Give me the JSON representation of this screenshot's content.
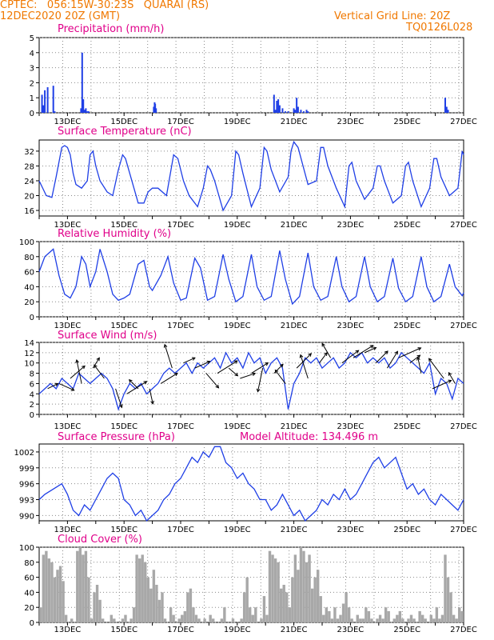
{
  "header": {
    "line1_left": "CPTEC:   056:15W-30:23S   QUARAI (RS)",
    "line2_left": "12DEC2020 20Z (GMT)",
    "line1_right": "Vertical Grid Line: 20Z",
    "line2_right": "TQ0126L028"
  },
  "colors": {
    "header": "#f07800",
    "title": "#e0008a",
    "line": "#1f3fe6",
    "bar": "#1f3fe6",
    "cloud": "#a8a8a8",
    "grid": "#8a8a8a"
  },
  "x_axis": {
    "start_label": "12DEC2020 20Z",
    "tick_labels": [
      "13DEC",
      "15DEC",
      "17DEC",
      "19DEC",
      "21DEC",
      "23DEC",
      "25DEC",
      "27DEC"
    ],
    "tick_days": [
      13,
      15,
      17,
      19,
      21,
      23,
      25,
      27
    ],
    "range_days": [
      12.0,
      27.0
    ]
  },
  "chart_data": [
    {
      "id": "precip",
      "type": "bar",
      "title": "Precipitation (mm/h)",
      "ylim": [
        0,
        5
      ],
      "yticks": [
        0,
        1,
        2,
        3,
        4,
        5
      ],
      "grid": true,
      "x": [
        12.1,
        12.15,
        12.2,
        12.3,
        12.5,
        12.55,
        13.48,
        13.52,
        13.56,
        13.6,
        13.65,
        13.7,
        13.75,
        16.05,
        16.08,
        16.1,
        16.13,
        20.3,
        20.35,
        20.4,
        20.45,
        20.5,
        20.6,
        20.7,
        20.8,
        21.0,
        21.05,
        21.1,
        21.15,
        21.25,
        21.35,
        21.45,
        21.5,
        26.35,
        26.4,
        26.45
      ],
      "values": [
        1.2,
        0.5,
        1.5,
        1.7,
        1.8,
        0.1,
        0.3,
        4.0,
        0.9,
        0.2,
        0.3,
        0.1,
        0.1,
        0.4,
        0.7,
        0.6,
        0.3,
        1.2,
        0.2,
        0.8,
        0.9,
        0.5,
        0.3,
        0.1,
        0.1,
        0.3,
        0.2,
        1.0,
        0.4,
        0.2,
        0.1,
        0.2,
        0.1,
        1.0,
        0.4,
        0.2
      ]
    },
    {
      "id": "temperature",
      "type": "line",
      "title": "Surface Temperature (nC)",
      "ylim": [
        14.5,
        35
      ],
      "yticks": [
        16,
        20,
        24,
        28,
        32
      ],
      "grid": true,
      "x": [
        12.0,
        12.25,
        12.45,
        12.6,
        12.8,
        12.9,
        13.0,
        13.1,
        13.2,
        13.3,
        13.5,
        13.7,
        13.8,
        13.9,
        14.0,
        14.15,
        14.4,
        14.6,
        14.8,
        14.95,
        15.05,
        15.2,
        15.5,
        15.7,
        15.85,
        16.0,
        16.05,
        16.1,
        16.2,
        16.5,
        16.75,
        16.9,
        17.0,
        17.1,
        17.3,
        17.6,
        17.8,
        17.95,
        18.05,
        18.2,
        18.5,
        18.8,
        18.95,
        19.05,
        19.2,
        19.5,
        19.8,
        19.95,
        20.05,
        20.2,
        20.5,
        20.8,
        20.9,
        21.0,
        21.15,
        21.5,
        21.8,
        21.95,
        22.05,
        22.2,
        22.5,
        22.8,
        22.95,
        23.05,
        23.2,
        23.5,
        23.8,
        23.95,
        24.05,
        24.2,
        24.5,
        24.8,
        24.95,
        25.05,
        25.2,
        25.5,
        25.8,
        25.95,
        26.05,
        26.2,
        26.5,
        26.8,
        26.95,
        27.0
      ],
      "values": [
        24,
        20,
        19.5,
        25,
        33,
        33.5,
        33,
        31,
        26,
        23,
        22,
        24,
        31,
        32,
        28,
        24,
        21,
        20,
        27,
        31,
        30,
        26,
        18,
        18,
        21,
        22,
        22,
        22,
        22,
        20,
        31,
        30,
        27,
        24,
        20,
        17,
        22,
        28,
        27,
        24,
        16,
        20,
        32,
        31,
        26,
        17,
        22,
        33,
        32,
        27,
        21,
        25,
        32,
        34.5,
        33,
        23,
        24,
        33,
        33,
        28,
        22,
        17,
        28,
        29,
        24,
        19,
        22,
        28,
        28,
        24,
        18,
        20,
        28,
        29,
        24,
        17,
        22,
        30,
        30,
        25,
        20,
        22,
        32,
        31
      ]
    },
    {
      "id": "humidity",
      "type": "line",
      "title": "Relative Humidity (%)",
      "ylim": [
        0,
        100
      ],
      "yticks": [
        0,
        20,
        40,
        60,
        80,
        100
      ],
      "grid": true,
      "x": [
        12.0,
        12.2,
        12.5,
        12.7,
        12.9,
        13.1,
        13.3,
        13.5,
        13.65,
        13.8,
        14.0,
        14.15,
        14.4,
        14.6,
        14.8,
        15.0,
        15.2,
        15.5,
        15.7,
        15.9,
        16.0,
        16.3,
        16.55,
        16.75,
        17.0,
        17.2,
        17.5,
        17.7,
        17.95,
        18.2,
        18.5,
        18.7,
        18.95,
        19.2,
        19.5,
        19.7,
        19.95,
        20.2,
        20.5,
        20.7,
        20.95,
        21.2,
        21.5,
        21.7,
        21.95,
        22.2,
        22.5,
        22.7,
        22.95,
        23.2,
        23.5,
        23.7,
        23.95,
        24.2,
        24.5,
        24.7,
        24.95,
        25.2,
        25.5,
        25.7,
        25.95,
        26.2,
        26.5,
        26.7,
        26.95,
        27.0
      ],
      "values": [
        60,
        80,
        90,
        55,
        30,
        25,
        40,
        80,
        70,
        40,
        60,
        90,
        60,
        30,
        22,
        25,
        30,
        70,
        75,
        40,
        35,
        55,
        80,
        45,
        22,
        25,
        78,
        65,
        22,
        27,
        83,
        50,
        20,
        27,
        83,
        40,
        22,
        27,
        88,
        50,
        17,
        27,
        85,
        40,
        22,
        27,
        80,
        40,
        20,
        27,
        80,
        40,
        20,
        27,
        78,
        38,
        20,
        27,
        80,
        40,
        20,
        27,
        70,
        40,
        28,
        32
      ]
    },
    {
      "id": "wind",
      "type": "line",
      "title": "Surface Wind (m/s)",
      "ylim": [
        0,
        14
      ],
      "yticks": [
        0,
        2,
        4,
        6,
        8,
        10,
        12,
        14
      ],
      "grid": true,
      "x": [
        12.0,
        12.2,
        12.4,
        12.6,
        12.8,
        13.0,
        13.2,
        13.4,
        13.6,
        13.8,
        14.0,
        14.2,
        14.4,
        14.6,
        14.8,
        15.0,
        15.2,
        15.4,
        15.6,
        15.8,
        16.0,
        16.2,
        16.4,
        16.6,
        16.8,
        17.0,
        17.2,
        17.4,
        17.6,
        17.8,
        18.0,
        18.2,
        18.4,
        18.6,
        18.8,
        19.0,
        19.2,
        19.4,
        19.6,
        19.8,
        20.0,
        20.2,
        20.4,
        20.6,
        20.8,
        21.0,
        21.2,
        21.4,
        21.6,
        21.8,
        22.0,
        22.2,
        22.4,
        22.6,
        22.8,
        23.0,
        23.2,
        23.4,
        23.6,
        23.8,
        24.0,
        24.2,
        24.4,
        24.6,
        24.8,
        25.0,
        25.2,
        25.4,
        25.6,
        25.8,
        26.0,
        26.2,
        26.4,
        26.6,
        26.8,
        27.0
      ],
      "values": [
        4,
        5,
        6,
        5,
        7,
        6,
        5,
        8,
        7,
        6,
        7,
        8,
        7,
        5,
        1,
        4,
        6,
        5,
        6,
        4,
        5,
        6,
        8,
        9,
        8,
        9,
        10,
        8,
        10,
        9,
        10,
        11,
        9,
        12,
        10,
        11,
        9,
        12,
        10,
        11,
        8,
        10,
        11,
        9,
        1,
        6,
        8,
        11,
        10,
        11,
        9,
        10,
        11,
        9,
        10,
        12,
        11,
        12,
        10,
        11,
        10,
        11,
        9,
        10,
        12,
        11,
        10,
        9,
        8,
        10,
        4,
        7,
        6,
        3,
        7,
        6
      ]
    },
    {
      "id": "pressure",
      "type": "line",
      "title": "Surface Pressure (hPa)",
      "annotation": "Model Altitude: 134.496 m",
      "ylim": [
        989,
        1003.5
      ],
      "yticks": [
        990,
        993,
        996,
        999,
        1002
      ],
      "grid": true,
      "x": [
        12.0,
        12.2,
        12.5,
        12.8,
        13.0,
        13.2,
        13.4,
        13.6,
        13.8,
        14.0,
        14.2,
        14.4,
        14.6,
        14.8,
        15.0,
        15.2,
        15.4,
        15.6,
        15.8,
        16.0,
        16.2,
        16.4,
        16.6,
        16.8,
        17.0,
        17.2,
        17.4,
        17.6,
        17.8,
        18.0,
        18.2,
        18.4,
        18.6,
        18.8,
        19.0,
        19.2,
        19.4,
        19.6,
        19.8,
        20.0,
        20.2,
        20.4,
        20.6,
        20.8,
        21.0,
        21.2,
        21.4,
        21.6,
        21.8,
        22.0,
        22.2,
        22.4,
        22.6,
        22.8,
        23.0,
        23.2,
        23.4,
        23.6,
        23.8,
        24.0,
        24.2,
        24.4,
        24.6,
        24.8,
        25.0,
        25.2,
        25.4,
        25.6,
        25.8,
        26.0,
        26.2,
        26.4,
        26.6,
        26.8,
        27.0
      ],
      "values": [
        993,
        994,
        995,
        996,
        994,
        991,
        990,
        992,
        991,
        993,
        995,
        997,
        998,
        997,
        993,
        992,
        990,
        991,
        989,
        990,
        991,
        993,
        994,
        996,
        997,
        999,
        1001,
        1000,
        1002,
        1001,
        1003,
        1003,
        1000,
        999,
        997,
        998,
        996,
        995,
        993,
        993,
        991,
        992,
        994,
        992,
        990,
        991,
        989,
        990,
        991,
        993,
        992,
        994,
        993,
        995,
        993,
        994,
        996,
        998,
        1000,
        1001,
        999,
        1000,
        1001,
        998,
        995,
        996,
        994,
        995,
        993,
        992,
        994,
        993,
        992,
        991,
        993
      ]
    },
    {
      "id": "cloud",
      "type": "bar",
      "title": "Cloud Cover (%)",
      "ylim": [
        0,
        100
      ],
      "yticks": [
        0,
        20,
        40,
        60,
        80,
        100
      ],
      "grid": true,
      "x": [
        12.05,
        12.15,
        12.25,
        12.35,
        12.45,
        12.55,
        12.65,
        12.75,
        12.85,
        12.95,
        13.05,
        13.15,
        13.25,
        13.35,
        13.45,
        13.55,
        13.65,
        13.75,
        13.85,
        13.95,
        14.05,
        14.15,
        14.25,
        14.35,
        14.45,
        14.55,
        14.65,
        14.75,
        14.85,
        14.95,
        15.05,
        15.15,
        15.25,
        15.35,
        15.45,
        15.55,
        15.65,
        15.75,
        15.85,
        15.95,
        16.05,
        16.15,
        16.25,
        16.35,
        16.45,
        16.55,
        16.65,
        16.75,
        16.85,
        16.95,
        17.05,
        17.15,
        17.25,
        17.35,
        17.45,
        17.55,
        17.65,
        17.75,
        17.85,
        17.95,
        18.05,
        18.15,
        18.25,
        18.35,
        18.45,
        18.55,
        18.65,
        18.75,
        18.85,
        18.95,
        19.05,
        19.15,
        19.25,
        19.35,
        19.45,
        19.55,
        19.65,
        19.75,
        19.85,
        19.95,
        20.05,
        20.15,
        20.25,
        20.35,
        20.45,
        20.55,
        20.65,
        20.75,
        20.85,
        20.95,
        21.05,
        21.15,
        21.25,
        21.35,
        21.45,
        21.55,
        21.65,
        21.75,
        21.85,
        21.95,
        22.05,
        22.15,
        22.25,
        22.35,
        22.45,
        22.55,
        22.65,
        22.75,
        22.85,
        22.95,
        23.05,
        23.15,
        23.25,
        23.35,
        23.45,
        23.55,
        23.65,
        23.75,
        23.85,
        23.95,
        24.05,
        24.15,
        24.25,
        24.35,
        24.45,
        24.55,
        24.65,
        24.75,
        24.85,
        24.95,
        25.05,
        25.15,
        25.25,
        25.35,
        25.45,
        25.55,
        25.65,
        25.75,
        25.85,
        25.95,
        26.05,
        26.15,
        26.25,
        26.35,
        26.45,
        26.55,
        26.65,
        26.75,
        26.85,
        26.95
      ],
      "values": [
        20,
        90,
        95,
        85,
        80,
        60,
        70,
        75,
        55,
        10,
        0,
        5,
        0,
        95,
        100,
        90,
        95,
        60,
        5,
        40,
        50,
        30,
        5,
        0,
        0,
        10,
        5,
        0,
        0,
        5,
        10,
        0,
        5,
        20,
        90,
        85,
        90,
        80,
        60,
        45,
        70,
        50,
        30,
        40,
        5,
        0,
        20,
        10,
        0,
        5,
        10,
        15,
        40,
        45,
        20,
        10,
        5,
        0,
        5,
        0,
        10,
        5,
        0,
        0,
        5,
        20,
        0,
        0,
        5,
        0,
        0,
        5,
        40,
        60,
        20,
        10,
        20,
        0,
        5,
        35,
        10,
        95,
        90,
        85,
        80,
        45,
        50,
        40,
        20,
        60,
        90,
        70,
        100,
        95,
        80,
        90,
        45,
        60,
        70,
        35,
        10,
        20,
        15,
        5,
        20,
        5,
        10,
        25,
        40,
        20,
        5,
        0,
        10,
        5,
        5,
        20,
        15,
        5,
        0,
        5,
        10,
        5,
        20,
        15,
        0,
        5,
        10,
        15,
        5,
        0,
        5,
        10,
        5,
        0,
        15,
        10,
        5,
        0,
        10,
        5,
        20,
        5,
        10,
        90,
        60,
        40,
        10,
        5,
        20,
        15
      ]
    }
  ],
  "wind_vectors": {
    "x": [
      12.3,
      12.7,
      13.1,
      13.5,
      13.9,
      14.3,
      14.7,
      15.1,
      15.5,
      15.9,
      16.3,
      16.7,
      17.1,
      17.5,
      17.9,
      18.3,
      18.7,
      19.1,
      19.5,
      19.9,
      20.3,
      20.7,
      21.1,
      21.5,
      21.9,
      22.3,
      22.7,
      23.1,
      23.5,
      23.9,
      24.3,
      24.7,
      25.1,
      25.5,
      25.9,
      26.3,
      26.7
    ],
    "speed": [
      5,
      6,
      7,
      6,
      9,
      7,
      5,
      4,
      5,
      5,
      6,
      9,
      10,
      9,
      8,
      8,
      9,
      7,
      8,
      9,
      8,
      6,
      9,
      7,
      10,
      11,
      10,
      11,
      12,
      10,
      9,
      11,
      10,
      8,
      5,
      7,
      6
    ],
    "dir_u": [
      0.8,
      0.9,
      0.7,
      -0.2,
      0.5,
      -0.6,
      0.3,
      0.8,
      -0.7,
      0.2,
      0.8,
      -0.3,
      0.9,
      0.9,
      0.6,
      0.8,
      0.7,
      0.9,
      0.8,
      -0.2,
      0.7,
      -0.6,
      0.7,
      -0.3,
      0.6,
      -0.5,
      0.8,
      0.8,
      0.9,
      0.7,
      0.5,
      0.9,
      0.8,
      -0.2,
      0.9,
      -0.6,
      -0.5
    ],
    "dir_v": [
      0.4,
      -0.4,
      0.6,
      0.95,
      0.8,
      0.8,
      -0.9,
      0.5,
      0.7,
      -0.9,
      0.5,
      0.95,
      0.4,
      0.4,
      -0.7,
      0.5,
      -0.6,
      0.3,
      0.5,
      -0.95,
      0.7,
      0.8,
      0.7,
      0.95,
      0.8,
      0.85,
      0.6,
      0.5,
      0.4,
      0.7,
      0.8,
      0.4,
      0.6,
      0.95,
      0.4,
      0.8,
      0.85
    ]
  }
}
